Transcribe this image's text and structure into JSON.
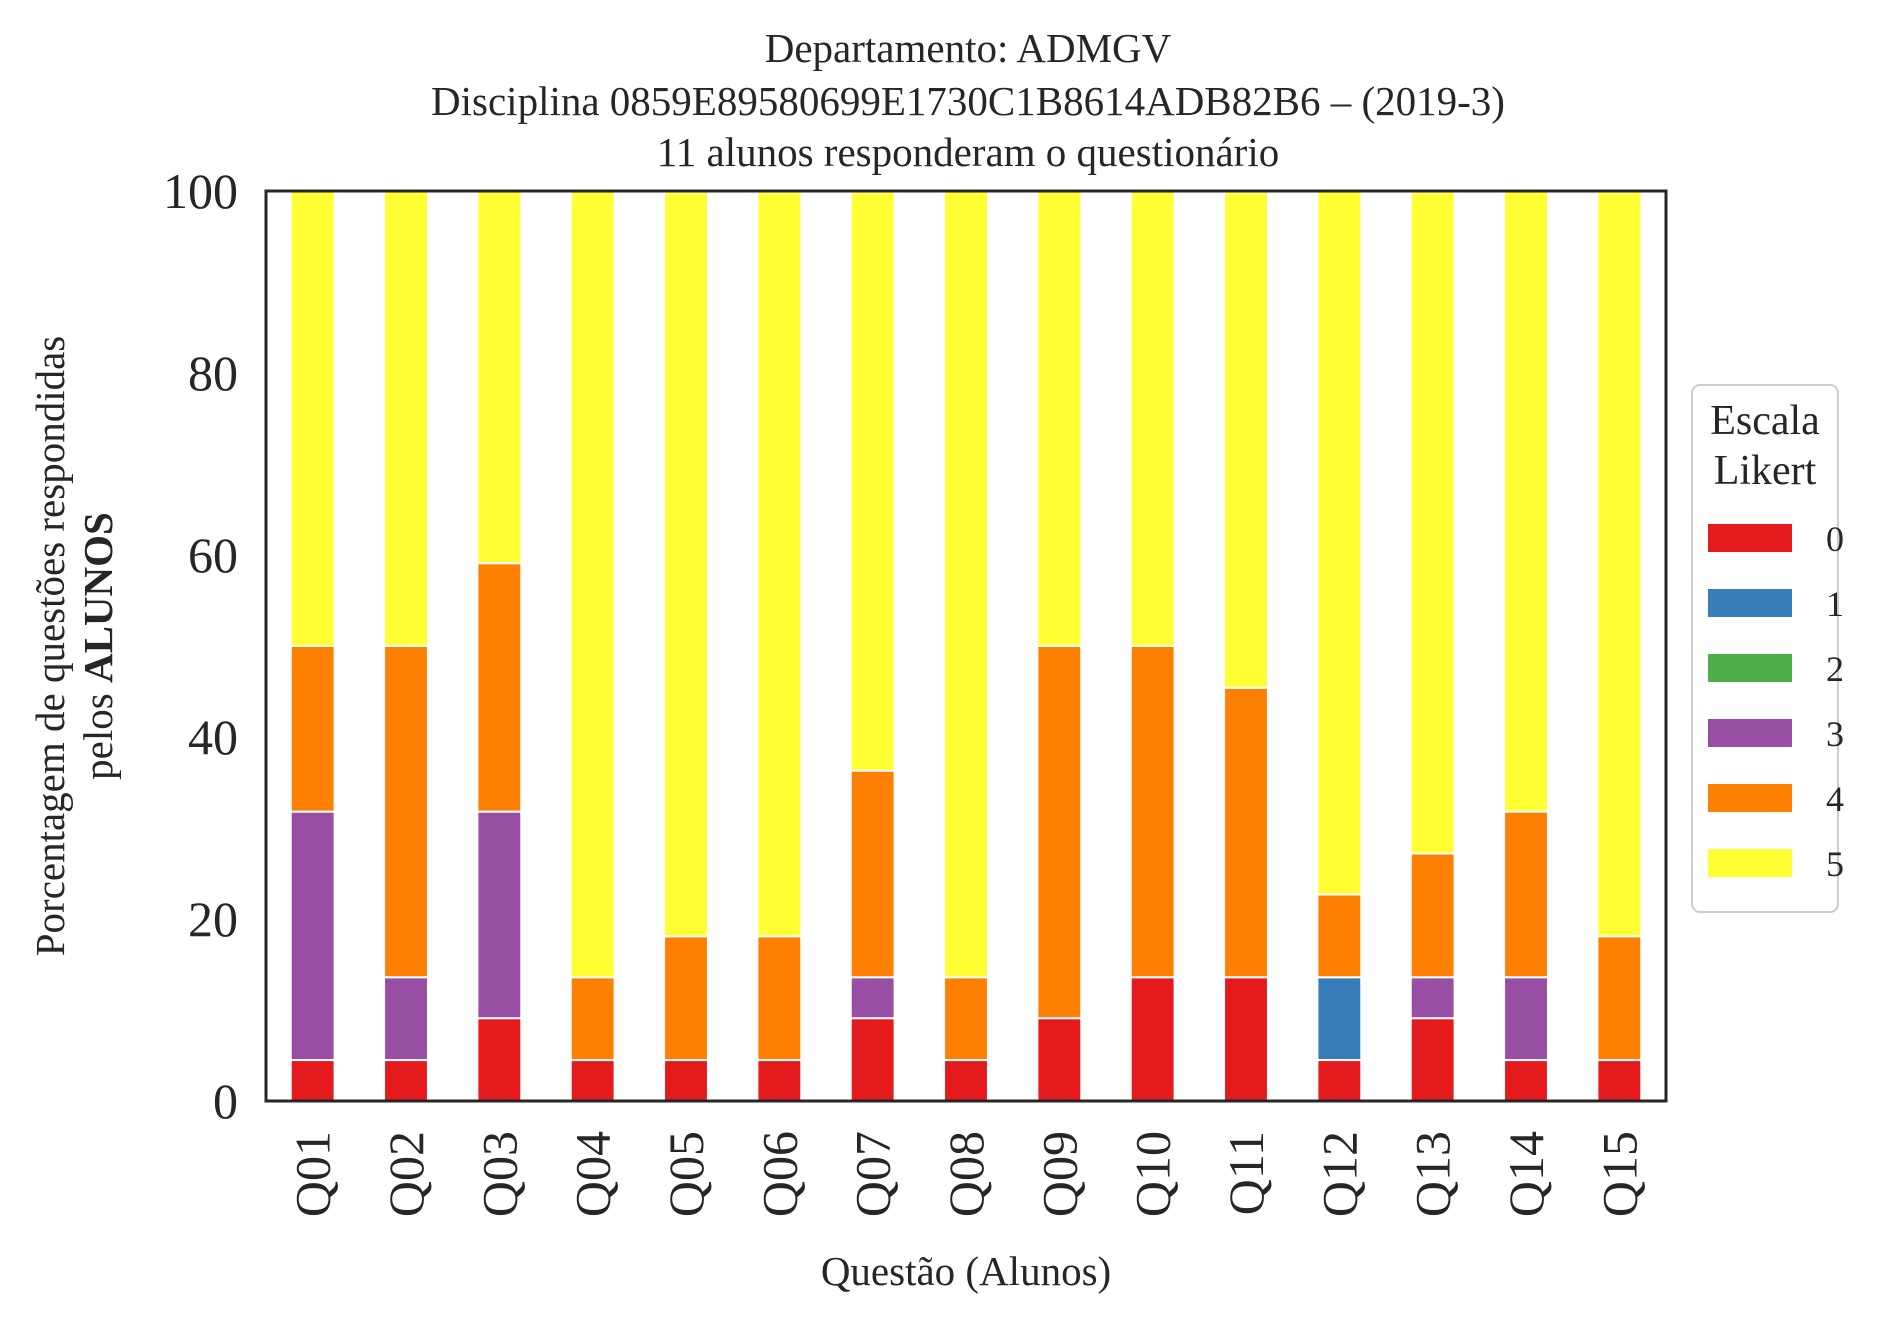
{
  "chart_data": {
    "type": "bar",
    "stacked": true,
    "title_lines": [
      "Departamento: ADMGV",
      "Disciplina 0859E89580699E1730C1B8614ADB82B6 – (2019-3)",
      "11 alunos responderam o questionário"
    ],
    "xlabel": "Questão (Alunos)",
    "ylabel_line1": "Porcentagem de questões respondidas",
    "ylabel_line2_prefix": "pelos ",
    "ylabel_line2_bold": "ALUNOS",
    "ylim": [
      0,
      100
    ],
    "yticks": [
      "0",
      "20",
      "40",
      "60",
      "80",
      "100"
    ],
    "grid": false,
    "legend": {
      "title_lines": [
        "Escala",
        "Likert"
      ],
      "placement": "right-center"
    },
    "categories": [
      "Q01",
      "Q02",
      "Q03",
      "Q04",
      "Q05",
      "Q06",
      "Q07",
      "Q08",
      "Q09",
      "Q10",
      "Q11",
      "Q12",
      "Q13",
      "Q14",
      "Q15"
    ],
    "series": [
      {
        "name": "0",
        "color": "#e41a1c",
        "values": [
          4.5,
          4.5,
          9.1,
          4.5,
          4.5,
          4.5,
          9.1,
          4.5,
          9.1,
          13.6,
          13.6,
          4.5,
          9.1,
          4.5,
          4.5
        ]
      },
      {
        "name": "1",
        "color": "#377eb8",
        "values": [
          0,
          0,
          0,
          0,
          0,
          0,
          0,
          0,
          0,
          0,
          0,
          9.1,
          0,
          0,
          0
        ]
      },
      {
        "name": "2",
        "color": "#4daf4a",
        "values": [
          0,
          0,
          0,
          0,
          0,
          0,
          0,
          0,
          0,
          0,
          0,
          0,
          0,
          0,
          0
        ]
      },
      {
        "name": "3",
        "color": "#984ea3",
        "values": [
          27.3,
          9.1,
          22.7,
          0,
          0,
          0,
          4.5,
          0,
          0,
          0,
          0,
          0,
          4.5,
          9.1,
          0
        ]
      },
      {
        "name": "4",
        "color": "#ff7f00",
        "values": [
          18.2,
          36.4,
          27.3,
          9.1,
          13.6,
          13.6,
          22.7,
          9.1,
          40.9,
          36.4,
          31.8,
          9.1,
          13.6,
          18.2,
          13.6
        ]
      },
      {
        "name": "5",
        "color": "#ffff33",
        "values": [
          50.0,
          50.0,
          40.9,
          86.4,
          81.8,
          81.8,
          63.6,
          86.4,
          50.0,
          50.0,
          54.5,
          77.3,
          72.7,
          68.2,
          81.8
        ]
      }
    ]
  }
}
